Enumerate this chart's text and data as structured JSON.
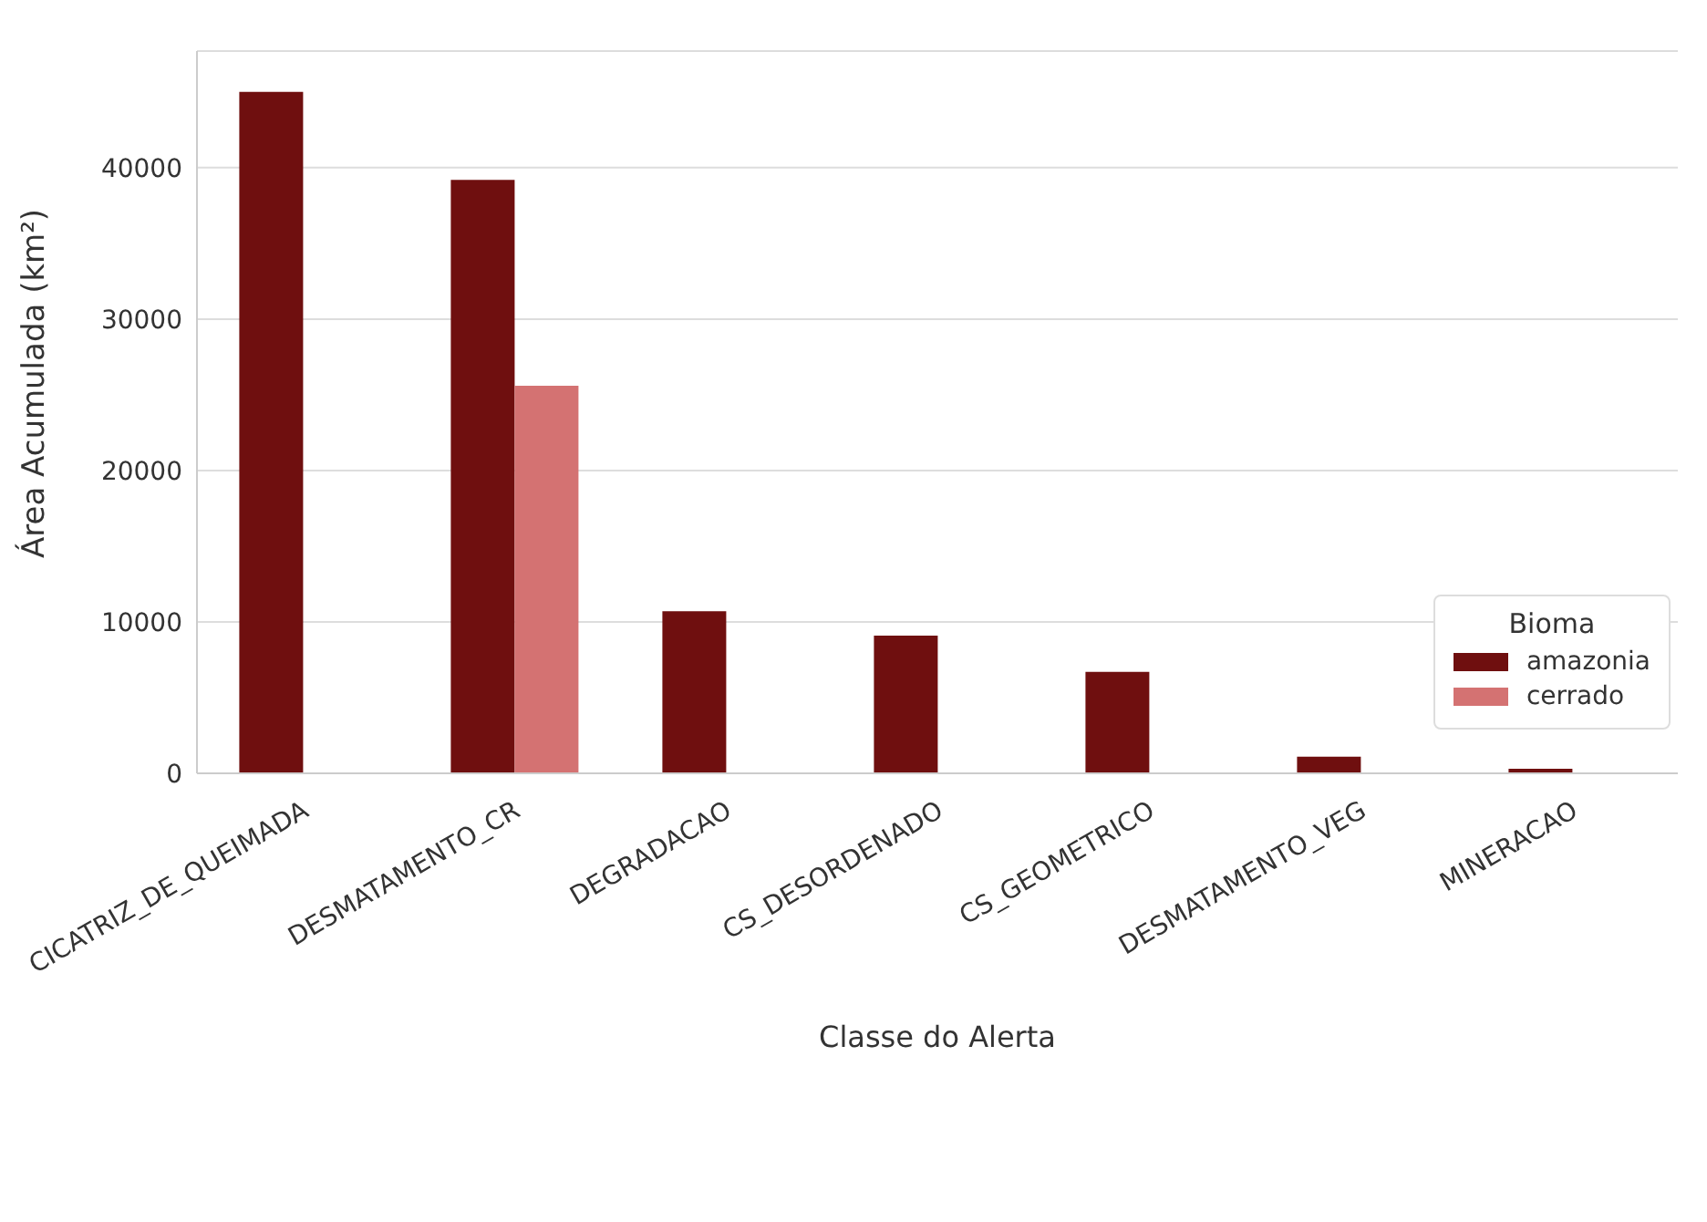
{
  "chart_data": {
    "type": "bar",
    "xlabel": "Classe do Alerta",
    "ylabel": "Área Acumulada (km²)",
    "legend_title": "Bioma",
    "categories": [
      "CICATRIZ_DE_QUEIMADA",
      "DESMATAMENTO_CR",
      "DEGRADACAO",
      "CS_DESORDENADO",
      "CS_GEOMETRICO",
      "DESMATAMENTO_VEG",
      "MINERACAO"
    ],
    "series": [
      {
        "name": "amazonia",
        "color": "#6f0f0f",
        "values": [
          45000,
          39200,
          10700,
          9100,
          6700,
          1100,
          300
        ]
      },
      {
        "name": "cerrado",
        "color": "#d47272",
        "values": [
          null,
          25600,
          null,
          null,
          null,
          null,
          null
        ]
      }
    ],
    "ylim": [
      0,
      47700
    ],
    "yticks": [
      0,
      10000,
      20000,
      30000,
      40000
    ],
    "grid": "y",
    "legend": "bottom right"
  }
}
